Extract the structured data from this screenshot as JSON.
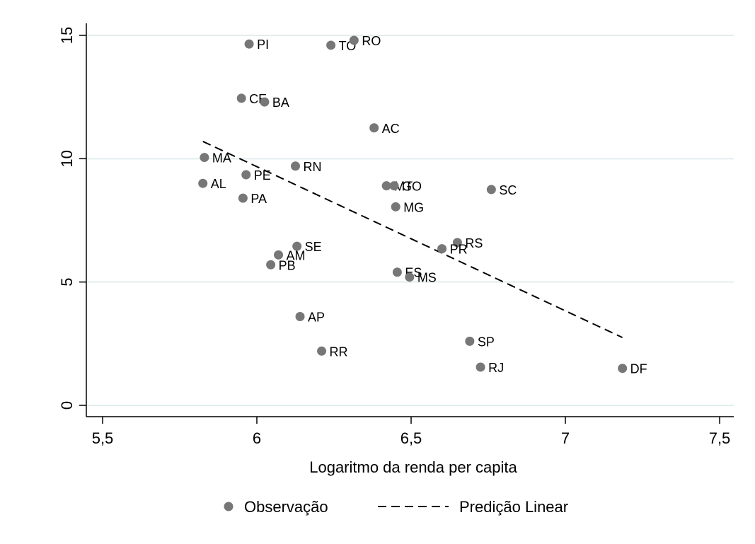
{
  "chart_data": {
    "type": "scatter",
    "xlabel": "Logaritmo da renda per capita",
    "ylabel": "",
    "xlim": [
      5.5,
      7.5
    ],
    "ylim": [
      0,
      15
    ],
    "xticks": [
      5.5,
      6,
      6.5,
      7,
      7.5
    ],
    "yticks": [
      0,
      5,
      10,
      15
    ],
    "xtick_labels": [
      "5,5",
      "6",
      "6,5",
      "7",
      "7,5"
    ],
    "ytick_labels": [
      "0",
      "5",
      "10",
      "15"
    ],
    "grid": "horizontal",
    "legend_position": "bottom",
    "colors": {
      "points": "#777777",
      "line": "#000000",
      "grid": "#e3eeee",
      "background": "#ffffff"
    },
    "series": [
      {
        "name": "Observação",
        "type": "scatter",
        "points": [
          {
            "label": "PI",
            "x": 5.975,
            "y": 14.65
          },
          {
            "label": "TO",
            "x": 6.24,
            "y": 14.6
          },
          {
            "label": "RO",
            "x": 6.315,
            "y": 14.8
          },
          {
            "label": "CE",
            "x": 5.95,
            "y": 12.45
          },
          {
            "label": "BA",
            "x": 6.025,
            "y": 12.3
          },
          {
            "label": "AC",
            "x": 6.38,
            "y": 11.25
          },
          {
            "label": "MA",
            "x": 5.83,
            "y": 10.05
          },
          {
            "label": "RN",
            "x": 6.125,
            "y": 9.7
          },
          {
            "label": "PE",
            "x": 5.965,
            "y": 9.35
          },
          {
            "label": "AL",
            "x": 5.825,
            "y": 9.0
          },
          {
            "label": "MT",
            "x": 6.42,
            "y": 8.9
          },
          {
            "label": "GO",
            "x": 6.445,
            "y": 8.9
          },
          {
            "label": "SC",
            "x": 6.76,
            "y": 8.75
          },
          {
            "label": "PA",
            "x": 5.955,
            "y": 8.4
          },
          {
            "label": "MG",
            "x": 6.45,
            "y": 8.05
          },
          {
            "label": "RS",
            "x": 6.65,
            "y": 6.6
          },
          {
            "label": "PR",
            "x": 6.6,
            "y": 6.35
          },
          {
            "label": "SE",
            "x": 6.13,
            "y": 6.45
          },
          {
            "label": "AM",
            "x": 6.07,
            "y": 6.1
          },
          {
            "label": "PB",
            "x": 6.045,
            "y": 5.7
          },
          {
            "label": "ES",
            "x": 6.455,
            "y": 5.4
          },
          {
            "label": "MS",
            "x": 6.495,
            "y": 5.2
          },
          {
            "label": "AP",
            "x": 6.14,
            "y": 3.6
          },
          {
            "label": "SP",
            "x": 6.69,
            "y": 2.6
          },
          {
            "label": "RR",
            "x": 6.21,
            "y": 2.2
          },
          {
            "label": "RJ",
            "x": 6.725,
            "y": 1.55
          },
          {
            "label": "DF",
            "x": 7.185,
            "y": 1.5
          }
        ]
      },
      {
        "name": "Predição Linear",
        "type": "line",
        "style": "dashed",
        "points": [
          {
            "x": 5.825,
            "y": 10.7
          },
          {
            "x": 7.185,
            "y": 2.75
          }
        ]
      }
    ]
  }
}
